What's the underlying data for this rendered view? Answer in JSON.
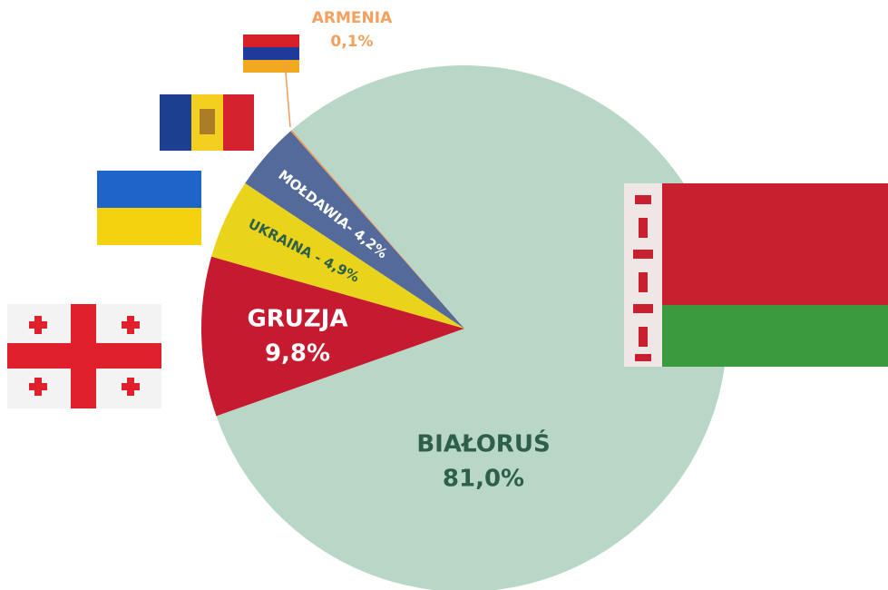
{
  "chart_data": {
    "type": "pie",
    "categories": [
      "BIAŁORUŚ",
      "GRUZJA",
      "UKRAINA -",
      "MOŁDAWIA-",
      "ARMENIA"
    ],
    "values": [
      81.0,
      9.8,
      4.9,
      4.2,
      0.1
    ],
    "value_labels": [
      "81,0%",
      "9,8%",
      "4,9%",
      "4,2%",
      "0,1%"
    ],
    "colors": [
      "#b9d7c7",
      "#c61a30",
      "#e9d31b",
      "#536a9b",
      "#f19a5a"
    ]
  }
}
